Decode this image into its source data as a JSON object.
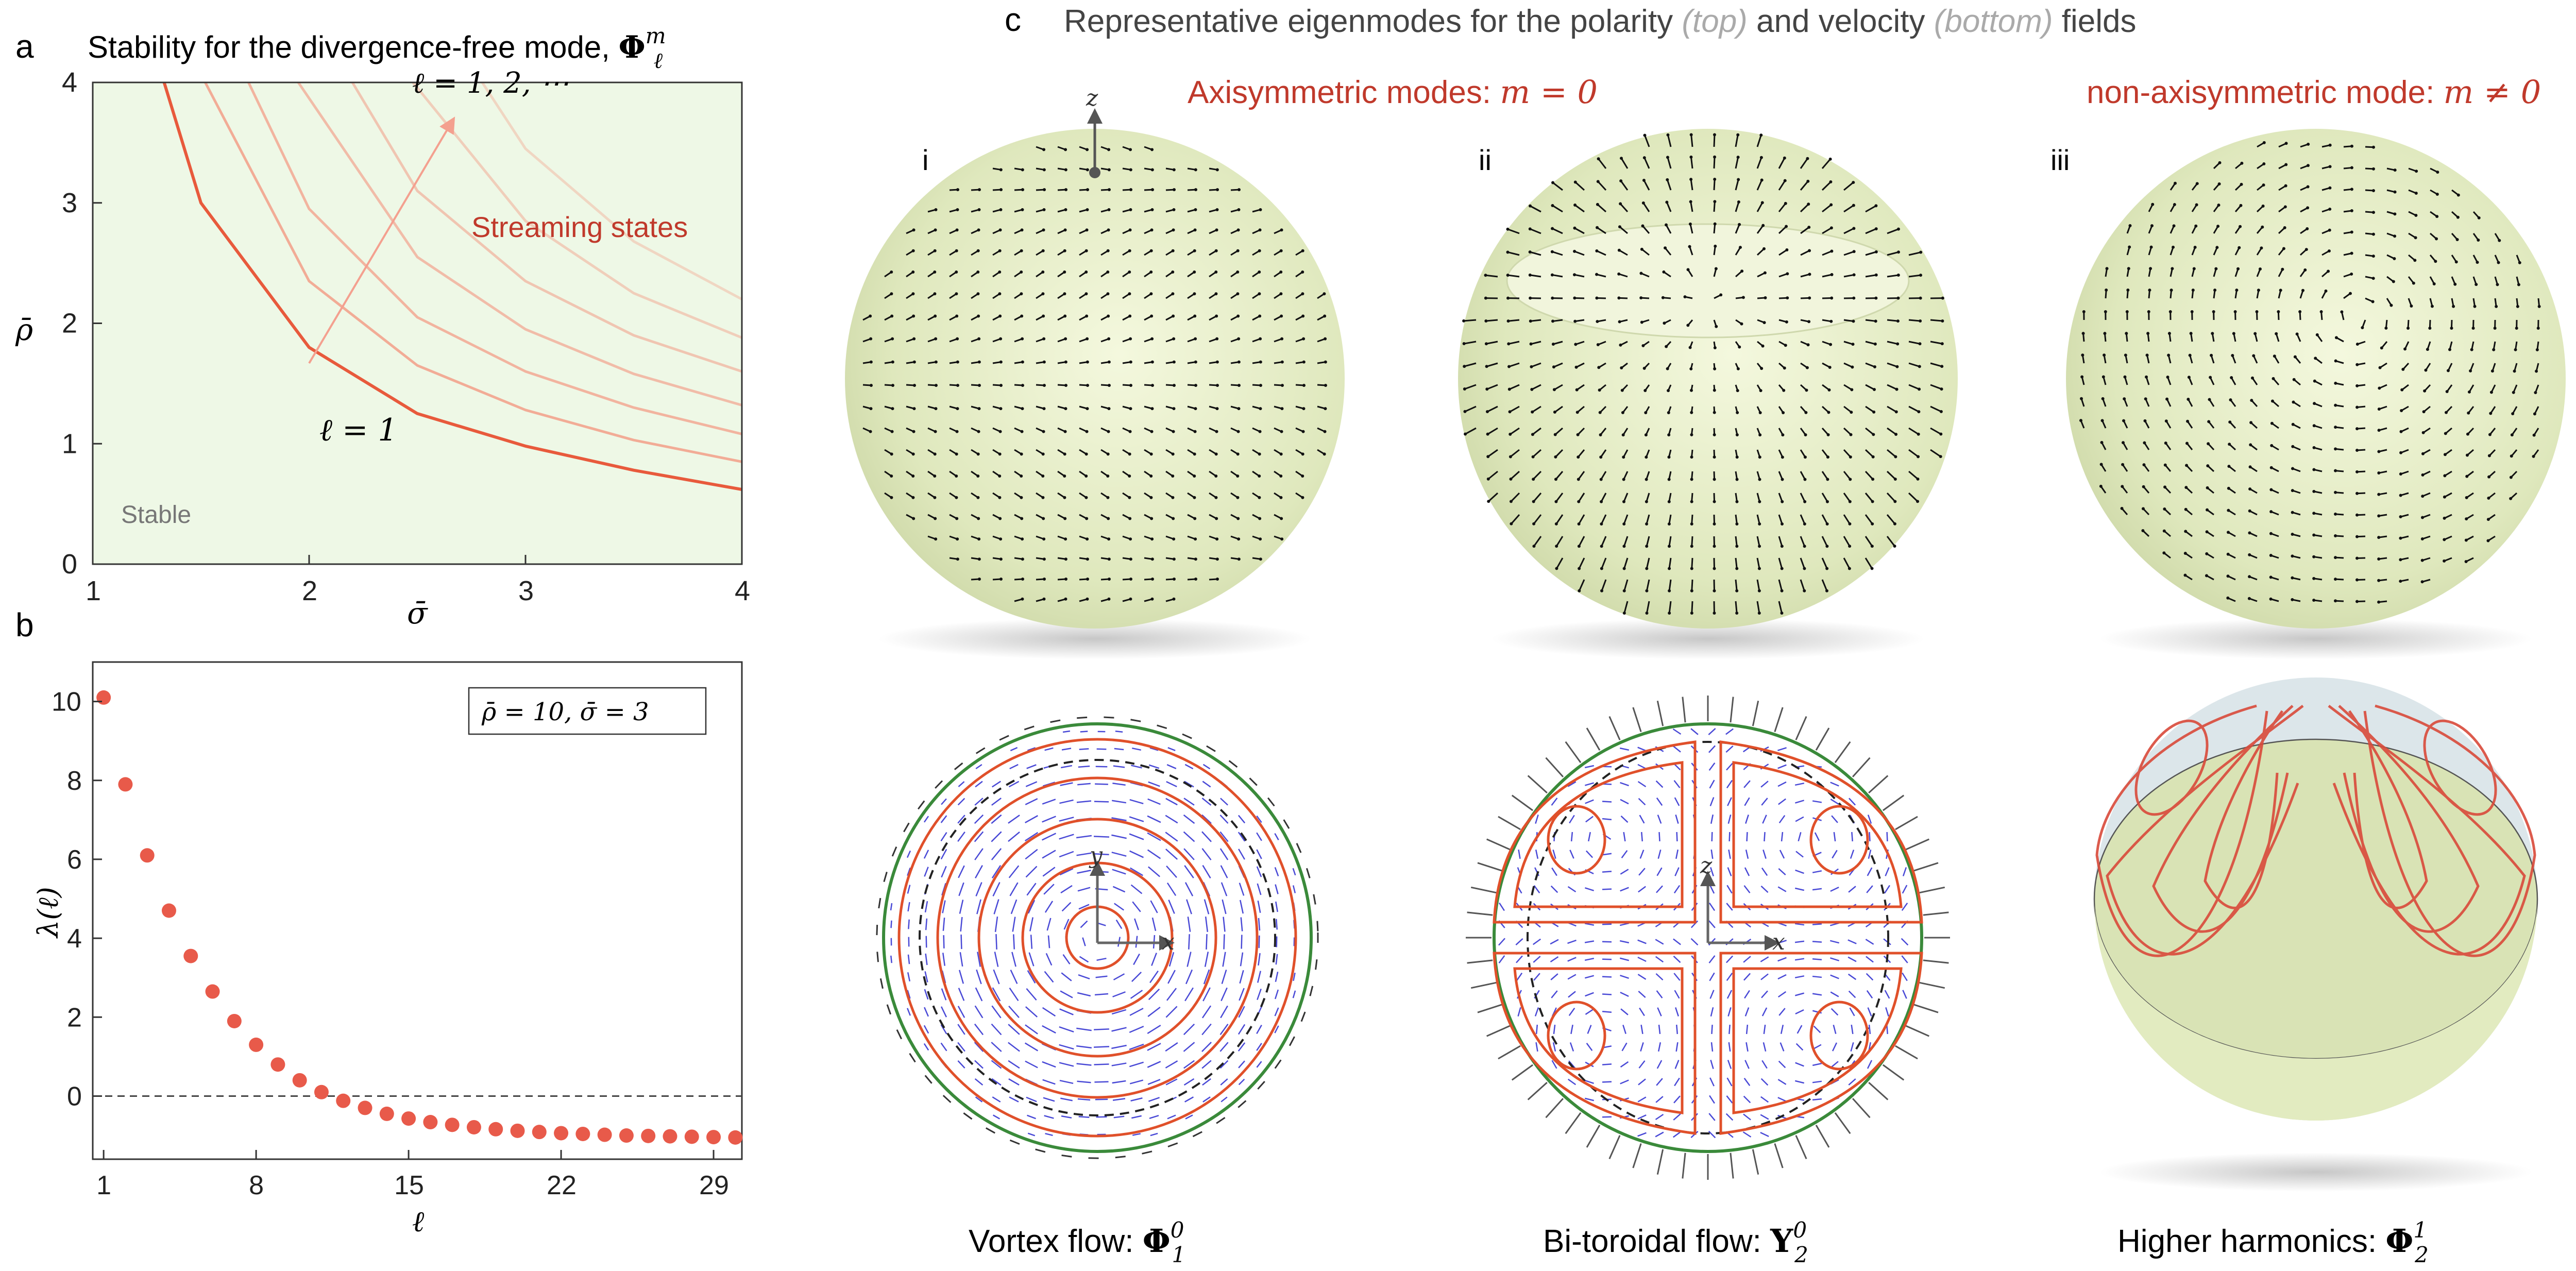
{
  "panel_a": {
    "letter": "a",
    "title_prefix": "Stability for the divergence-free mode, ",
    "title_symbol": "Φ",
    "title_sup": "m",
    "title_sub": "ℓ",
    "xlabel": "σ̄",
    "ylabel": "ρ̄",
    "x_ticks": [
      "1",
      "2",
      "3",
      "4"
    ],
    "y_ticks": [
      "0",
      "1",
      "2",
      "3",
      "4"
    ],
    "annot_l_series": "ℓ = 1, 2, ⋯",
    "annot_l1": "ℓ = 1",
    "streaming_label": "Streaming states",
    "stable_label": "Stable",
    "colors": {
      "fill": "#eef8e6",
      "curve_l1": "#e85a3c",
      "curve_light": "#f2a38d",
      "arrow": "#f4a08f"
    }
  },
  "panel_b": {
    "letter": "b",
    "xlabel": "ℓ",
    "ylabel": "λ(ℓ)",
    "x_ticks": [
      "1",
      "8",
      "15",
      "22",
      "29"
    ],
    "y_ticks": [
      "0",
      "2",
      "4",
      "6",
      "8",
      "10"
    ],
    "param_box": "ρ̄ = 10,  σ̄ = 3",
    "marker_color": "#e85a4a"
  },
  "chart_data": [
    {
      "type": "line",
      "xlabel": "σ̄",
      "ylabel": "ρ̄",
      "xlim": [
        1,
        4
      ],
      "ylim": [
        0,
        4
      ],
      "grid": false,
      "series": [
        {
          "x": [
            1.33,
            1.5,
            2.0,
            2.5,
            3.0,
            3.5,
            4.0
          ],
          "values": [
            4.0,
            3.0,
            1.8,
            1.25,
            0.98,
            0.78,
            0.62
          ]
        },
        {
          "x": [
            1.52,
            2.0,
            2.5,
            3.0,
            3.5,
            4.0
          ],
          "values": [
            4.0,
            2.35,
            1.65,
            1.28,
            1.03,
            0.85
          ]
        },
        {
          "x": [
            1.72,
            2.0,
            2.5,
            3.0,
            3.5,
            4.0
          ],
          "values": [
            4.0,
            2.95,
            2.05,
            1.6,
            1.3,
            1.08
          ]
        },
        {
          "x": [
            1.95,
            2.5,
            3.0,
            3.5,
            4.0
          ],
          "values": [
            4.0,
            2.55,
            1.95,
            1.58,
            1.32
          ]
        },
        {
          "x": [
            2.2,
            2.5,
            3.0,
            3.5,
            4.0
          ],
          "values": [
            4.0,
            3.1,
            2.35,
            1.9,
            1.6
          ]
        },
        {
          "x": [
            2.48,
            3.0,
            3.5,
            4.0
          ],
          "values": [
            4.0,
            2.85,
            2.25,
            1.88
          ]
        },
        {
          "x": [
            2.8,
            3.0,
            3.5,
            4.0
          ],
          "values": [
            4.0,
            3.45,
            2.68,
            2.2
          ]
        }
      ]
    },
    {
      "type": "scatter",
      "xlabel": "ℓ",
      "ylabel": "λ(ℓ)",
      "xlim": [
        0.5,
        30.3
      ],
      "ylim": [
        -1.6,
        11
      ],
      "x": [
        1,
        2,
        3,
        4,
        5,
        6,
        7,
        8,
        9,
        10,
        11,
        12,
        13,
        14,
        15,
        16,
        17,
        18,
        19,
        20,
        21,
        22,
        23,
        24,
        25,
        26,
        27,
        28,
        29,
        30
      ],
      "values": [
        10.1,
        7.9,
        6.1,
        4.7,
        3.55,
        2.65,
        1.9,
        1.3,
        0.8,
        0.4,
        0.1,
        -0.12,
        -0.3,
        -0.45,
        -0.57,
        -0.66,
        -0.73,
        -0.79,
        -0.84,
        -0.88,
        -0.91,
        -0.94,
        -0.96,
        -0.98,
        -1.0,
        -1.01,
        -1.02,
        -1.03,
        -1.04,
        -1.05
      ],
      "reference_line_y": 0
    }
  ],
  "panel_c": {
    "letter": "c",
    "title_parts": [
      "Representative eigenmodes for the polarity ",
      "(top)",
      " and velocity ",
      "(bottom)",
      " fields"
    ],
    "axisym_label": "Axisymmetric modes: ",
    "axisym_math": "m = 0",
    "nonaxisym_label": "non-axisymmetric mode: ",
    "nonaxisym_math": "m ≠ 0",
    "roman": [
      "i",
      "ii",
      "iii"
    ],
    "axis_z": "z",
    "axis_y": "y",
    "axis_x": "x",
    "captions": [
      {
        "text": "Vortex flow: ",
        "symbol": "Φ",
        "sup": "0",
        "sub": "1"
      },
      {
        "text": "Bi-toroidal flow: ",
        "symbol": "Y",
        "sup": "0",
        "sub": "2"
      },
      {
        "text": "Higher harmonics: ",
        "symbol": "Φ",
        "sup": "1",
        "sub": "2"
      }
    ],
    "colors": {
      "sphere": "#e8efc9",
      "flow_arrow": "#2222cc",
      "streamline": "#e0502a",
      "boundary": "#3a8a3a",
      "label_red": "#c0392b"
    }
  }
}
